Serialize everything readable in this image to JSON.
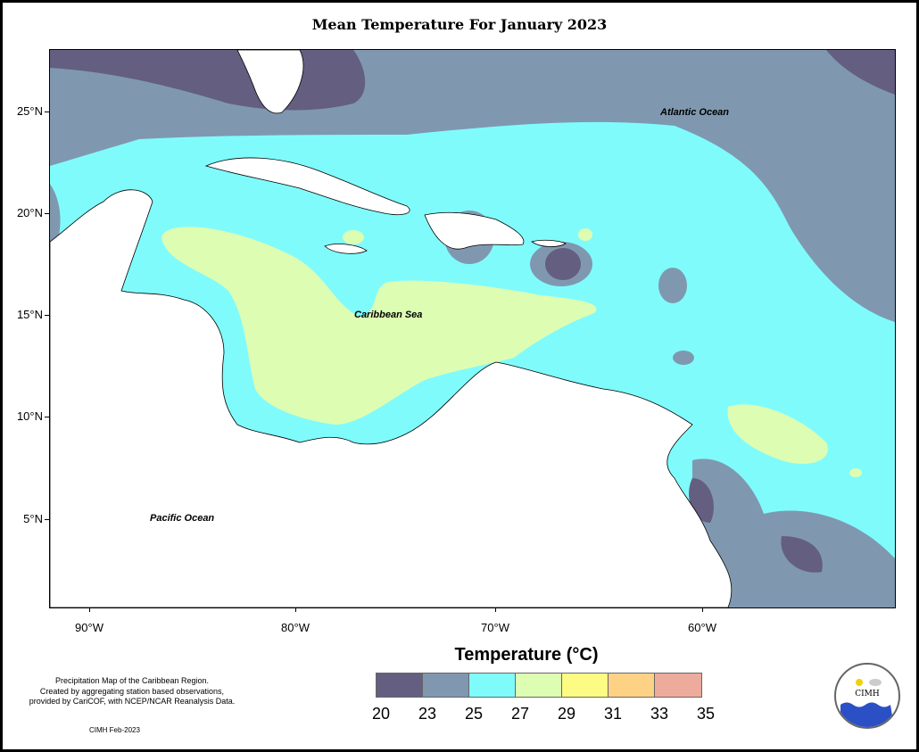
{
  "title": "Mean Temperature For January 2023",
  "axes": {
    "lat_labels": [
      "25°N",
      "20°N",
      "15°N",
      "10°N",
      "5°N"
    ],
    "lon_labels": [
      "90°W",
      "80°W",
      "70°W",
      "60°W"
    ]
  },
  "labels": {
    "atlantic": "Atlantic Ocean",
    "caribbean": "Caribbean Sea",
    "pacific": "Pacific Ocean"
  },
  "legend": {
    "title": "Temperature (°C)",
    "breaks": [
      "20",
      "23",
      "25",
      "27",
      "29",
      "31",
      "33",
      "35"
    ],
    "colors": [
      "#645e80",
      "#7f98b0",
      "#80fbfc",
      "#ddfeb2",
      "#fcfb83",
      "#fed285",
      "#edab9c"
    ]
  },
  "note": "Precipitation Map of the Caribbean Region.\nCreated by aggregating station based observations,\nprovided by CariCOF, with NCEP/NCAR Reanalysis Data.",
  "footer": "CIMH Feb-2023",
  "logo": {
    "text": "CIMH",
    "icon": "cimh-logo-icon"
  }
}
